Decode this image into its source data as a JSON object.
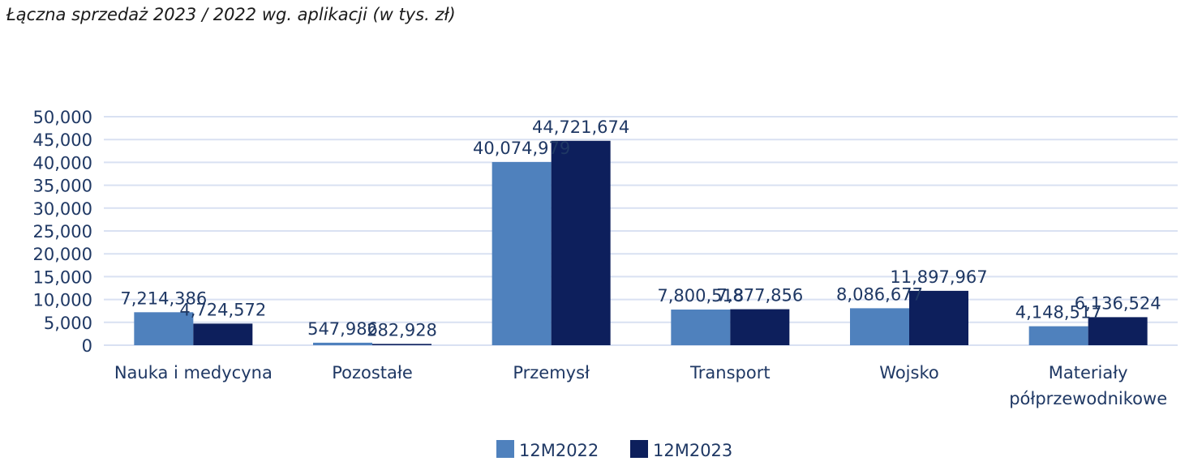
{
  "chart_data": {
    "type": "bar",
    "title": "Łączna sprzedaż 2023 / 2022 wg. aplikacji (w tys. zł)",
    "xlabel": "",
    "ylabel": "",
    "categories": [
      "Nauka i medycyna",
      "Pozostałe",
      "Przemysł",
      "Transport",
      "Wojsko",
      "Materiały półprzewodnikowe"
    ],
    "category_lines": [
      [
        "Nauka i medycyna"
      ],
      [
        "Pozostałe"
      ],
      [
        "Przemysł"
      ],
      [
        "Transport"
      ],
      [
        "Wojsko"
      ],
      [
        "Materiały",
        "półprzewodnikowe"
      ]
    ],
    "series": [
      {
        "name": "12M2022",
        "color": "#4f81bd",
        "values": [
          7214.386,
          547.986,
          40074.979,
          7800.518,
          8086.677,
          4148.517
        ],
        "labels": [
          "7,214,386",
          "547,986",
          "40,074,979",
          "7,800,518",
          "8,086,677",
          "4,148,517"
        ]
      },
      {
        "name": "12M2023",
        "color": "#0d1f5c",
        "values": [
          4724.572,
          282.928,
          44721.674,
          7877.856,
          11897.967,
          6136.524
        ],
        "labels": [
          "4,724,572",
          "282,928",
          "44,721,674",
          "7,877,856",
          "11,897,967",
          "6,136,524"
        ]
      }
    ],
    "ylim": [
      0,
      50000
    ],
    "yticks": [
      0,
      5000,
      10000,
      15000,
      20000,
      25000,
      30000,
      35000,
      40000,
      45000,
      50000
    ],
    "ytick_labels": [
      "0",
      "5,000",
      "10,000",
      "15,000",
      "20,000",
      "25,000",
      "30,000",
      "35,000",
      "40,000",
      "45,000",
      "50,000"
    ],
    "grid": true,
    "gridline_color": "#d9e1f2",
    "legend_position": "bottom-center"
  }
}
